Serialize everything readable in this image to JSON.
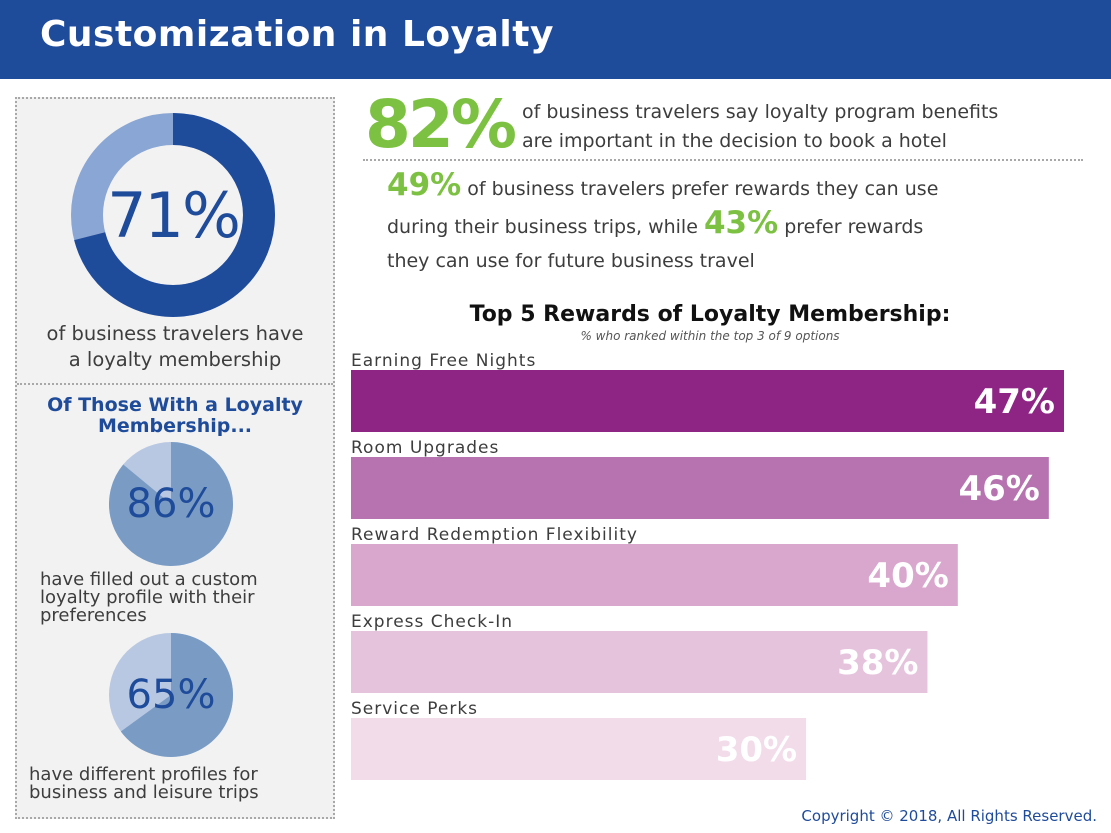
{
  "header": {
    "title": "Customization in Loyalty"
  },
  "left_panel": {
    "main_stat": {
      "value_label": "71%",
      "value": 71,
      "caption_line1": "of business travelers have",
      "caption_line2": "a loyalty membership"
    },
    "subheading_line1": "Of Those With a Loyalty",
    "subheading_line2": "Membership...",
    "stats": [
      {
        "value_label": "86%",
        "value": 86,
        "caption_line1": "have filled out a custom",
        "caption_line2": "loyalty profile with their",
        "caption_line3": "preferences"
      },
      {
        "value_label": "65%",
        "value": 65,
        "caption_line1": "have different profiles for",
        "caption_line2": "business and leisure trips"
      }
    ]
  },
  "stat_82": {
    "value_label": "82%",
    "line1": "of business travelers say loyalty program benefits",
    "line2": "are important in the decision to book a hotel"
  },
  "stat_49": {
    "value1_label": "49%",
    "text1": " of business travelers prefer rewards they can use",
    "text2": "during their business trips, while ",
    "value2_label": "43%",
    "text3": " prefer rewards",
    "text4": "they can use for future business travel"
  },
  "chart_data": {
    "type": "bar",
    "orientation": "horizontal",
    "title": "Top 5 Rewards of Loyalty Membership:",
    "subtitle": "% who ranked within the top 3 of 9 options",
    "categories": [
      "Earning Free Nights",
      "Room Upgrades",
      "Reward Redemption Flexibility",
      "Express Check-In",
      "Service Perks"
    ],
    "values": [
      47,
      46,
      40,
      38,
      30
    ],
    "value_labels": [
      "47%",
      "46%",
      "40%",
      "38%",
      "30%"
    ],
    "colors": [
      "#8e2585",
      "#b673b0",
      "#d9a6cd",
      "#e6c3dd",
      "#f2dcea"
    ],
    "xlim": [
      0,
      47
    ]
  },
  "colors": {
    "brand_blue": "#1f4b9b",
    "accent_green": "#7dc142",
    "light_blue": "#8aa6d4",
    "pie_blue": "#7a9cc4",
    "pie_light": "#b9c8e2"
  },
  "footer": {
    "copyright": "Copyright © 2018, All Rights Reserved."
  }
}
